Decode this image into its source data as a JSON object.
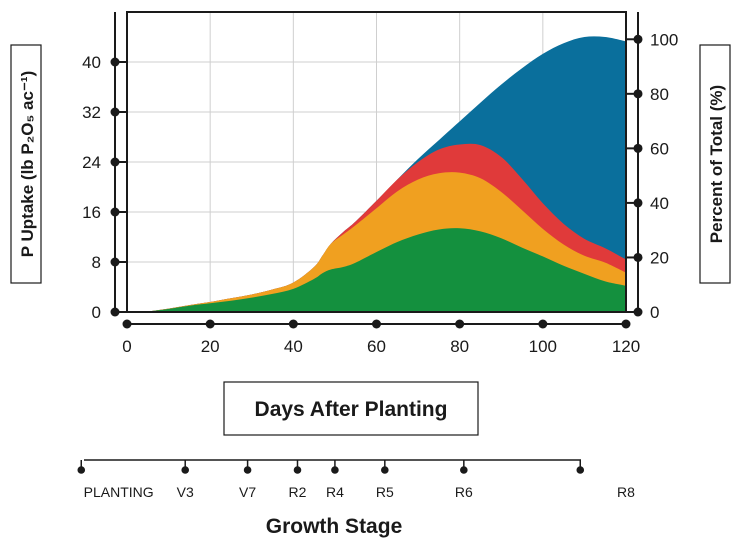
{
  "chart_data": {
    "type": "area",
    "x": [
      0,
      5,
      10,
      15,
      20,
      25,
      30,
      35,
      40,
      45,
      47,
      49,
      52,
      55,
      60,
      65,
      70,
      75,
      80,
      85,
      90,
      95,
      100,
      105,
      110,
      115,
      120
    ],
    "series": [
      {
        "values": [
          0,
          0.1,
          0.5,
          1,
          1.4,
          1.8,
          2.3,
          2.9,
          3.7,
          5.3,
          6.2,
          6.8,
          7.2,
          7.9,
          9.6,
          11.2,
          12.4,
          13.2,
          13.4,
          12.9,
          11.8,
          10.3,
          8.9,
          7.4,
          6.1,
          4.9,
          4.2
        ],
        "color": "#14903e"
      },
      {
        "values": [
          0,
          0.1,
          0.55,
          1.1,
          1.6,
          2.2,
          2.8,
          3.6,
          4.7,
          7.2,
          9.0,
          10.9,
          12.4,
          13.9,
          16.6,
          19.3,
          21.2,
          22.2,
          22.3,
          21.4,
          19.2,
          16.3,
          13.3,
          10.8,
          9.0,
          7.9,
          6.3
        ],
        "color": "#f0a020"
      },
      {
        "values": [
          0,
          0.1,
          0.55,
          1.1,
          1.6,
          2.2,
          2.8,
          3.6,
          4.7,
          7.2,
          9.0,
          10.9,
          12.8,
          14.5,
          17.8,
          21.2,
          24.0,
          26.0,
          26.8,
          26.7,
          24.8,
          21.3,
          17.4,
          14.1,
          11.7,
          10.2,
          8.4
        ],
        "color": "#e03a3a"
      },
      {
        "values": [
          0,
          0.1,
          0.55,
          1.1,
          1.6,
          2.2,
          2.8,
          3.6,
          4.7,
          7.2,
          9.0,
          10.9,
          12.8,
          14.5,
          17.8,
          21.2,
          24.5,
          27.5,
          30.5,
          33.5,
          36.4,
          39.0,
          41.3,
          43.0,
          44.0,
          44.0,
          43.3
        ],
        "color": "#0a6f9c"
      }
    ],
    "xlim": [
      0,
      120
    ],
    "ylim": [
      0,
      48
    ],
    "xticks": [
      "0",
      "20",
      "40",
      "60",
      "80",
      "100",
      "120"
    ],
    "xtick_values": [
      0,
      20,
      40,
      60,
      80,
      100,
      120
    ],
    "yticks": [
      "0",
      "8",
      "16",
      "24",
      "32",
      "40"
    ],
    "ytick_values": [
      0,
      8,
      16,
      24,
      32,
      40
    ],
    "y2ticks": [
      "0",
      "20",
      "40",
      "60",
      "80",
      "100"
    ],
    "y2tick_values": [
      0,
      20,
      40,
      60,
      80,
      100
    ],
    "y2lim": [
      0,
      110
    ],
    "ylabel": "P Uptake (lb P₂O₅ ac⁻¹)",
    "y2label": "Percent of Total (%)",
    "xlabel": "Days After Planting",
    "grid": true,
    "growth_stage_title": "Growth Stage",
    "growth_stages": [
      {
        "label": "PLANTING",
        "marker_day": -11,
        "label_day": -2
      },
      {
        "label": "V3",
        "marker_day": 14,
        "label_day": 14
      },
      {
        "label": "V7",
        "marker_day": 29,
        "label_day": 29
      },
      {
        "label": "R2",
        "marker_day": 41,
        "label_day": 41
      },
      {
        "label": "R4",
        "marker_day": 50,
        "label_day": 50
      },
      {
        "label": "R5",
        "marker_day": 62,
        "label_day": 62
      },
      {
        "label": "R6",
        "marker_day": 81,
        "label_day": 81
      },
      {
        "label": "R8",
        "marker_day": 109,
        "label_day": 120
      }
    ]
  }
}
